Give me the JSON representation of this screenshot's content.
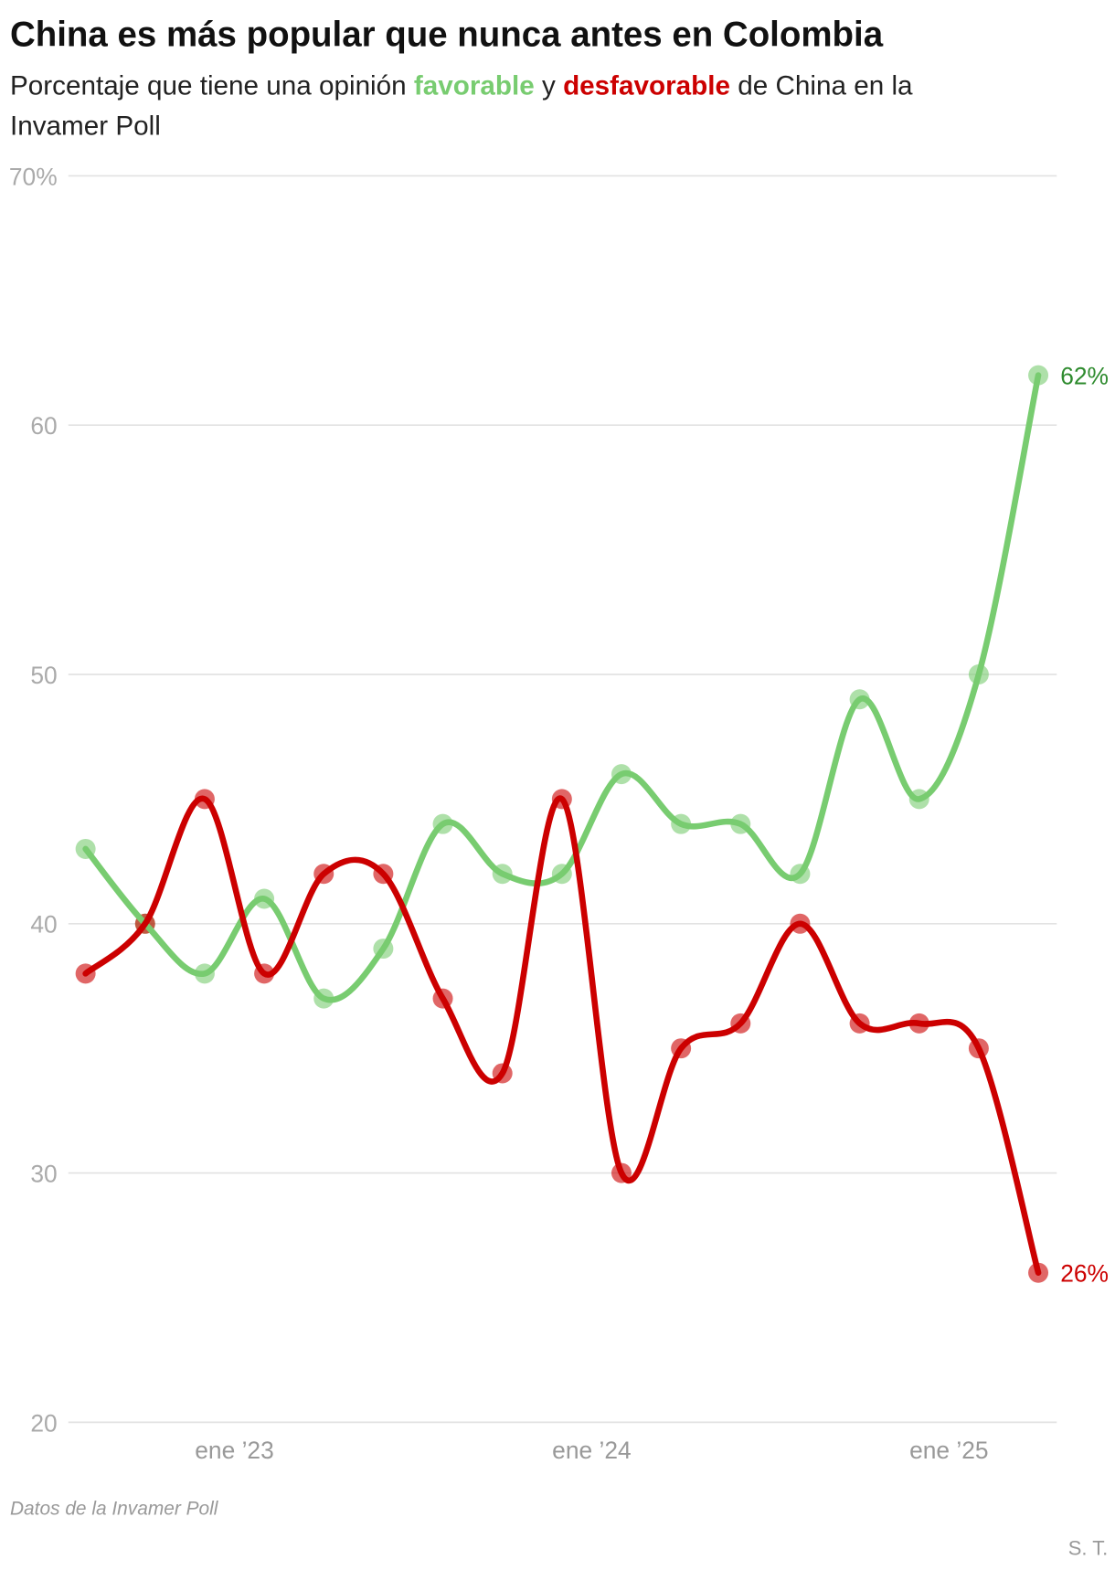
{
  "chart_data": {
    "type": "line",
    "title": "China es más popular que nunca antes en Colombia",
    "subtitle": [
      "Porcentaje que tiene una opinión ",
      "favorable",
      " y ",
      "desfavorable",
      " de China en la",
      "Invamer Poll"
    ],
    "source": "Datos de la Invamer Poll",
    "credit": "S. T.",
    "x": [
      0,
      1,
      2,
      3,
      4,
      5,
      6,
      7,
      8,
      9,
      10,
      11,
      12,
      13,
      14,
      15,
      16
    ],
    "xlim": [
      -0.29,
      16.31
    ],
    "xticks": [
      {
        "value": 2.5,
        "label": "ene ’23"
      },
      {
        "value": 8.5,
        "label": "ene ’24"
      },
      {
        "value": 14.5,
        "label": "ene ’25"
      }
    ],
    "ylim": [
      20,
      70
    ],
    "yticks": [
      20,
      30,
      40,
      50,
      60,
      {
        "value": 70,
        "label": "70%"
      }
    ],
    "grid": true,
    "series": [
      {
        "name": "favorable",
        "color": "#78cc70",
        "label_color": "#2e8b2e",
        "values": [
          43,
          40,
          38,
          41,
          37,
          39,
          44,
          42,
          42,
          46,
          44,
          44,
          42,
          49,
          45,
          50,
          62
        ],
        "value_labels": [
          null,
          null,
          null,
          null,
          null,
          null,
          null,
          null,
          null,
          null,
          null,
          null,
          null,
          null,
          null,
          null,
          "62%"
        ]
      },
      {
        "name": "desfavorable",
        "color": "#cc0000",
        "label_color": "#cc0000",
        "values": [
          38,
          40,
          45,
          38,
          42,
          42,
          37,
          34,
          45,
          30,
          35,
          36,
          40,
          36,
          36,
          35,
          26
        ],
        "value_labels": [
          null,
          null,
          null,
          null,
          null,
          null,
          null,
          null,
          null,
          null,
          null,
          null,
          null,
          null,
          null,
          null,
          "26%"
        ]
      }
    ]
  }
}
